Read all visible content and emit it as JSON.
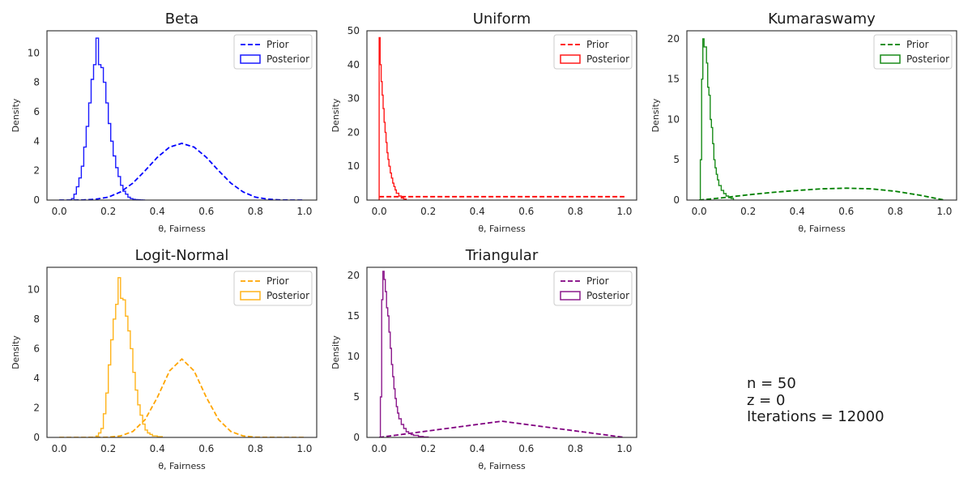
{
  "chart_data": [
    {
      "type": "line",
      "title": "Beta",
      "xlabel": "θ, Fairness",
      "ylabel": "Density",
      "xlim": [
        -0.05,
        1.05
      ],
      "ylim": [
        0,
        11.5
      ],
      "xticks": [
        "0.0",
        "0.2",
        "0.4",
        "0.6",
        "0.8",
        "1.0"
      ],
      "yticks": [
        "0",
        "2",
        "4",
        "6",
        "8",
        "10"
      ],
      "legend_placement": "top-right",
      "series": [
        {
          "name": "Prior",
          "style": "dashed",
          "color": "#0000ff",
          "x": [
            0,
            0.05,
            0.1,
            0.15,
            0.2,
            0.25,
            0.3,
            0.35,
            0.4,
            0.45,
            0.5,
            0.55,
            0.6,
            0.65,
            0.7,
            0.75,
            0.8,
            0.85,
            0.9,
            0.95,
            1.0
          ],
          "y": [
            0,
            0,
            0.01,
            0.06,
            0.2,
            0.55,
            1.15,
            2.0,
            2.9,
            3.6,
            3.85,
            3.6,
            2.9,
            2.0,
            1.15,
            0.55,
            0.2,
            0.06,
            0.01,
            0,
            0
          ]
        },
        {
          "name": "Posterior",
          "style": "step",
          "color": "#1a1aff",
          "x": [
            0.04,
            0.05,
            0.06,
            0.07,
            0.08,
            0.09,
            0.1,
            0.11,
            0.12,
            0.13,
            0.14,
            0.15,
            0.16,
            0.17,
            0.18,
            0.19,
            0.2,
            0.21,
            0.22,
            0.23,
            0.24,
            0.25,
            0.26,
            0.27,
            0.28,
            0.29,
            0.3,
            0.31,
            0.32,
            0.33,
            0.34,
            0.35
          ],
          "y": [
            0,
            0.1,
            0.4,
            0.9,
            1.5,
            2.3,
            3.6,
            5.0,
            6.6,
            8.2,
            9.2,
            11.0,
            9.2,
            9.0,
            8.0,
            6.6,
            5.2,
            4.0,
            3.0,
            2.2,
            1.6,
            1.0,
            0.6,
            0.4,
            0.2,
            0.1,
            0.05,
            0.03,
            0.02,
            0.01,
            0,
            0
          ]
        }
      ]
    },
    {
      "type": "line",
      "title": "Uniform",
      "xlabel": "θ, Fairness",
      "ylabel": "Density",
      "xlim": [
        -0.05,
        1.05
      ],
      "ylim": [
        0,
        50
      ],
      "xticks": [
        "0.0",
        "0.2",
        "0.4",
        "0.6",
        "0.8",
        "1.0"
      ],
      "yticks": [
        "0",
        "10",
        "20",
        "30",
        "40",
        "50"
      ],
      "legend_placement": "top-right",
      "series": [
        {
          "name": "Prior",
          "style": "dashed",
          "color": "#ff0000",
          "x": [
            0,
            1.0
          ],
          "y": [
            1,
            1
          ]
        },
        {
          "name": "Posterior",
          "style": "step",
          "color": "#ff1a1a",
          "x": [
            0,
            0.004,
            0.008,
            0.012,
            0.016,
            0.02,
            0.024,
            0.028,
            0.032,
            0.036,
            0.04,
            0.045,
            0.05,
            0.055,
            0.06,
            0.065,
            0.07,
            0.08,
            0.09,
            0.1,
            0.11
          ],
          "y": [
            48,
            40,
            35,
            31,
            27,
            23,
            20,
            17,
            14,
            12,
            10,
            8,
            6.5,
            5,
            4,
            3,
            2,
            1.2,
            0.6,
            0.3,
            0
          ]
        }
      ]
    },
    {
      "type": "line",
      "title": "Kumaraswamy",
      "xlabel": "θ, Fairness",
      "ylabel": "Density",
      "xlim": [
        -0.05,
        1.05
      ],
      "ylim": [
        0,
        21
      ],
      "xticks": [
        "0.0",
        "0.2",
        "0.4",
        "0.6",
        "0.8",
        "1.0"
      ],
      "yticks": [
        "0",
        "5",
        "10",
        "15",
        "20"
      ],
      "legend_placement": "top-right",
      "series": [
        {
          "name": "Prior",
          "style": "dashed",
          "color": "#008000",
          "x": [
            0,
            0.1,
            0.2,
            0.3,
            0.4,
            0.5,
            0.6,
            0.7,
            0.8,
            0.9,
            1.0
          ],
          "y": [
            0,
            0.3,
            0.65,
            0.95,
            1.2,
            1.4,
            1.48,
            1.4,
            1.1,
            0.6,
            0
          ]
        },
        {
          "name": "Posterior",
          "style": "step",
          "color": "#1a8c1a",
          "x": [
            0,
            0.005,
            0.01,
            0.015,
            0.02,
            0.025,
            0.03,
            0.035,
            0.04,
            0.045,
            0.05,
            0.055,
            0.06,
            0.065,
            0.07,
            0.075,
            0.08,
            0.09,
            0.1,
            0.11,
            0.12,
            0.13,
            0.14
          ],
          "y": [
            0,
            5,
            15,
            20,
            19,
            19,
            17,
            14,
            13,
            10,
            9,
            7,
            5,
            4,
            3.2,
            2.5,
            1.8,
            1.2,
            0.8,
            0.5,
            0.3,
            0.2,
            0
          ]
        }
      ]
    },
    {
      "type": "line",
      "title": "Logit-Normal",
      "xlabel": "θ, Fairness",
      "ylabel": "Density",
      "xlim": [
        -0.05,
        1.05
      ],
      "ylim": [
        0,
        11.5
      ],
      "xticks": [
        "0.0",
        "0.2",
        "0.4",
        "0.6",
        "0.8",
        "1.0"
      ],
      "yticks": [
        "0",
        "2",
        "4",
        "6",
        "8",
        "10"
      ],
      "legend_placement": "top-right",
      "series": [
        {
          "name": "Prior",
          "style": "dashed",
          "color": "#ffa500",
          "x": [
            0,
            0.1,
            0.2,
            0.25,
            0.3,
            0.35,
            0.4,
            0.45,
            0.5,
            0.55,
            0.6,
            0.65,
            0.7,
            0.75,
            0.8,
            0.9,
            1.0
          ],
          "y": [
            0,
            0,
            0.01,
            0.1,
            0.4,
            1.2,
            2.7,
            4.5,
            5.3,
            4.5,
            2.7,
            1.2,
            0.4,
            0.1,
            0.01,
            0,
            0
          ]
        },
        {
          "name": "Posterior",
          "style": "step",
          "color": "#ffb31a",
          "x": [
            0.14,
            0.15,
            0.16,
            0.17,
            0.18,
            0.19,
            0.2,
            0.21,
            0.22,
            0.23,
            0.24,
            0.25,
            0.26,
            0.27,
            0.28,
            0.29,
            0.3,
            0.31,
            0.32,
            0.33,
            0.34,
            0.35,
            0.36,
            0.37,
            0.38,
            0.4,
            0.42
          ],
          "y": [
            0,
            0.1,
            0.3,
            0.6,
            1.6,
            3.0,
            4.9,
            6.6,
            8.0,
            9.0,
            10.8,
            9.4,
            9.3,
            8.2,
            7.2,
            6.0,
            4.4,
            3.2,
            2.2,
            1.5,
            0.9,
            0.5,
            0.3,
            0.2,
            0.1,
            0.05,
            0
          ]
        }
      ]
    },
    {
      "type": "line",
      "title": "Triangular",
      "xlabel": "θ, Fairness",
      "ylabel": "Density",
      "xlim": [
        -0.05,
        1.05
      ],
      "ylim": [
        0,
        21
      ],
      "xticks": [
        "0.0",
        "0.2",
        "0.4",
        "0.6",
        "0.8",
        "1.0"
      ],
      "yticks": [
        "0",
        "5",
        "10",
        "15",
        "20"
      ],
      "legend_placement": "top-right",
      "series": [
        {
          "name": "Prior",
          "style": "dashed",
          "color": "#800080",
          "x": [
            0,
            0.5,
            1.0
          ],
          "y": [
            0,
            2,
            0
          ]
        },
        {
          "name": "Posterior",
          "style": "step",
          "color": "#8c1a8c",
          "x": [
            0,
            0.005,
            0.01,
            0.015,
            0.02,
            0.025,
            0.03,
            0.035,
            0.04,
            0.045,
            0.05,
            0.055,
            0.06,
            0.065,
            0.07,
            0.075,
            0.08,
            0.09,
            0.1,
            0.11,
            0.12,
            0.13,
            0.14,
            0.16,
            0.18,
            0.2
          ],
          "y": [
            0,
            5,
            17,
            20.5,
            19.5,
            18,
            16,
            15,
            13,
            11,
            9,
            7.5,
            6,
            4.8,
            3.8,
            3,
            2.3,
            1.6,
            1.1,
            0.7,
            0.5,
            0.35,
            0.25,
            0.12,
            0.05,
            0
          ]
        }
      ]
    }
  ],
  "annotation": {
    "lines": [
      "n = 50",
      "z = 0",
      "Iterations = 12000"
    ]
  }
}
